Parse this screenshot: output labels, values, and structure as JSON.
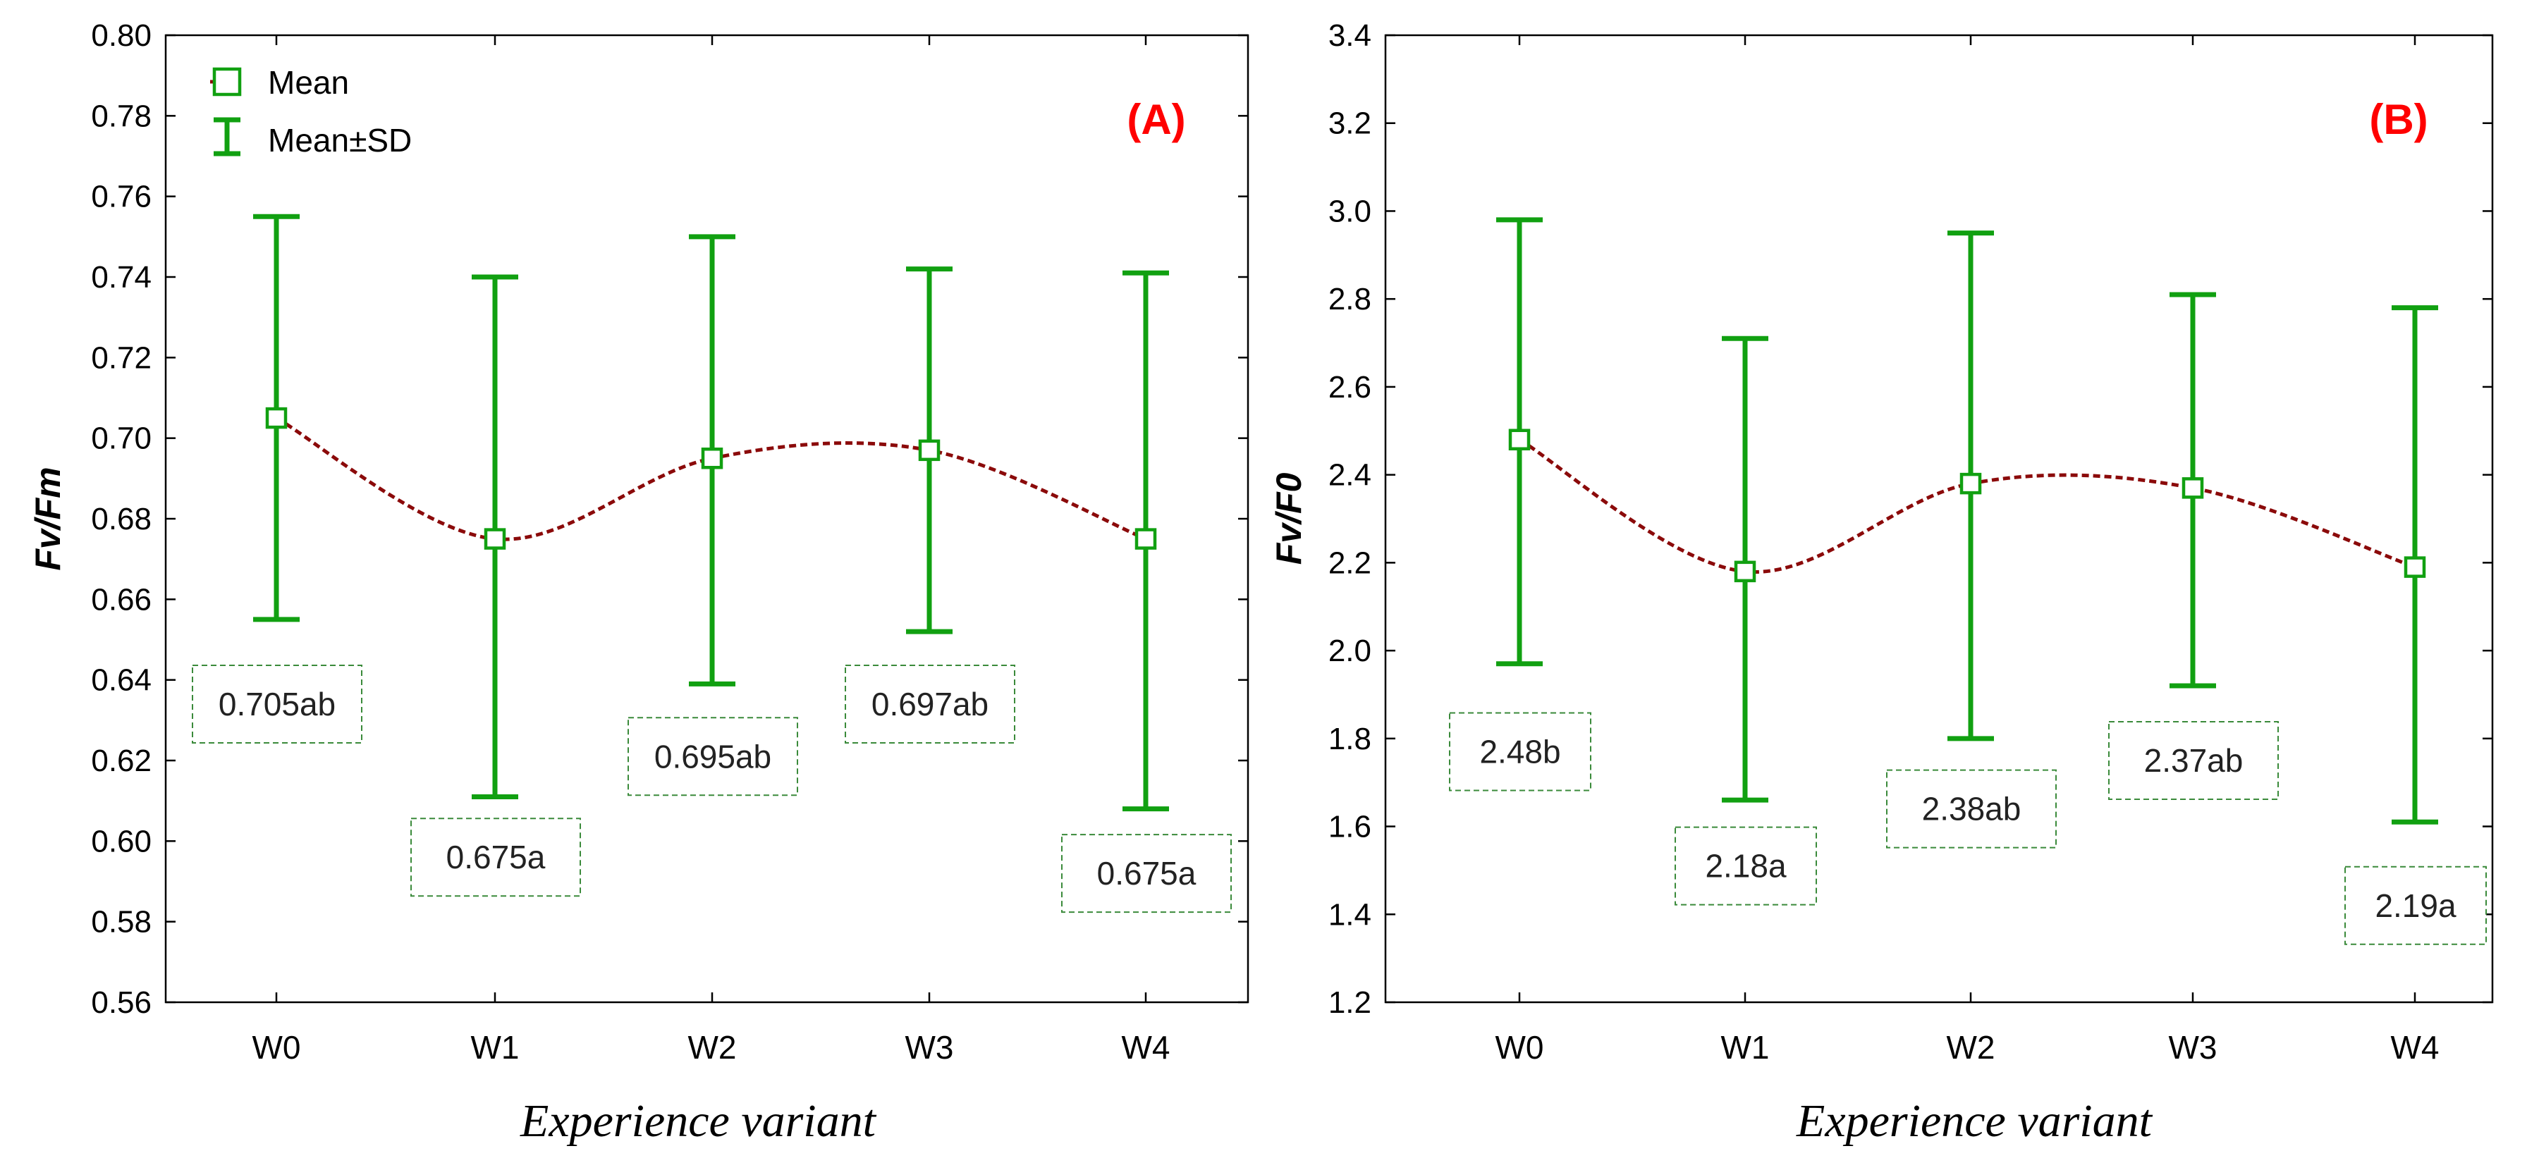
{
  "chart_data": [
    {
      "type": "line",
      "panel_label": "(A)",
      "xlabel": "Experience variant",
      "ylabel": "Fv/Fm",
      "categories": [
        "W0",
        "W1",
        "W2",
        "W3",
        "W4"
      ],
      "ylim": [
        0.56,
        0.8
      ],
      "yticks": [
        0.56,
        0.58,
        0.6,
        0.62,
        0.64,
        0.66,
        0.68,
        0.7,
        0.72,
        0.74,
        0.76,
        0.78,
        0.8
      ],
      "ytick_labels": [
        "0.56",
        "0.58",
        "0.60",
        "0.62",
        "0.64",
        "0.66",
        "0.68",
        "0.70",
        "0.72",
        "0.74",
        "0.76",
        "0.78",
        "0.80"
      ],
      "means": [
        0.705,
        0.675,
        0.695,
        0.697,
        0.675
      ],
      "sd_upper": [
        0.755,
        0.74,
        0.75,
        0.742,
        0.741
      ],
      "sd_lower": [
        0.655,
        0.611,
        0.639,
        0.652,
        0.608
      ],
      "value_labels": [
        "0.705ab",
        "0.675a",
        "0.695ab",
        "0.697ab",
        "0.675a"
      ],
      "label_anchor_values": [
        0.634,
        0.596,
        0.621,
        0.634,
        0.592
      ],
      "legend": [
        "Mean",
        "Mean±SD"
      ],
      "legend_position": "top-left"
    },
    {
      "type": "line",
      "panel_label": "(B)",
      "xlabel": "Experience variant",
      "ylabel": "Fv/F0",
      "categories": [
        "W0",
        "W1",
        "W2",
        "W3",
        "W4"
      ],
      "ylim": [
        1.2,
        3.4
      ],
      "yticks": [
        1.2,
        1.4,
        1.6,
        1.8,
        2.0,
        2.2,
        2.4,
        2.6,
        2.8,
        3.0,
        3.2,
        3.4
      ],
      "ytick_labels": [
        "1.2",
        "1.4",
        "1.6",
        "1.8",
        "2.0",
        "2.2",
        "2.4",
        "2.6",
        "2.8",
        "3.0",
        "3.2",
        "3.4"
      ],
      "means": [
        2.48,
        2.18,
        2.38,
        2.37,
        2.19
      ],
      "sd_upper": [
        2.98,
        2.71,
        2.95,
        2.81,
        2.78
      ],
      "sd_lower": [
        1.97,
        1.66,
        1.8,
        1.92,
        1.61
      ],
      "value_labels": [
        "2.48b",
        "2.18a",
        "2.38ab",
        "2.37ab",
        "2.19a"
      ],
      "label_anchor_values": [
        1.77,
        1.51,
        1.64,
        1.75,
        1.42
      ]
    }
  ]
}
